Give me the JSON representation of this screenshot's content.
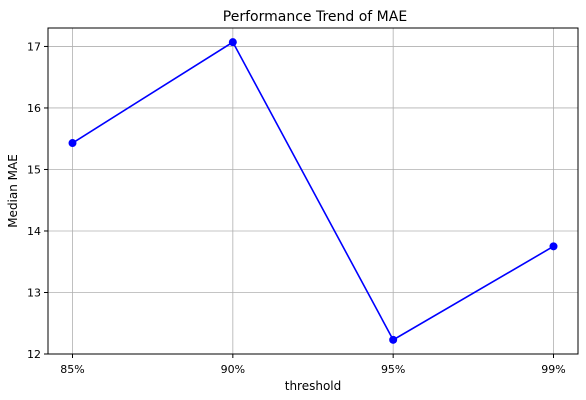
{
  "chart_data": {
    "type": "line",
    "title": "Performance Trend of MAE",
    "xlabel": "threshold",
    "ylabel": "Median MAE",
    "categories": [
      "85%",
      "90%",
      "95%",
      "99%"
    ],
    "series": [
      {
        "values": [
          15.43,
          17.07,
          12.23,
          13.75
        ]
      }
    ],
    "ylim": [
      12,
      17.3
    ],
    "yticks": [
      "12",
      "13",
      "14",
      "15",
      "16",
      "17"
    ],
    "grid": true,
    "colors": {
      "line": "#0000ff",
      "marker": "#0000ff",
      "grid": "#b0b0b0"
    }
  }
}
